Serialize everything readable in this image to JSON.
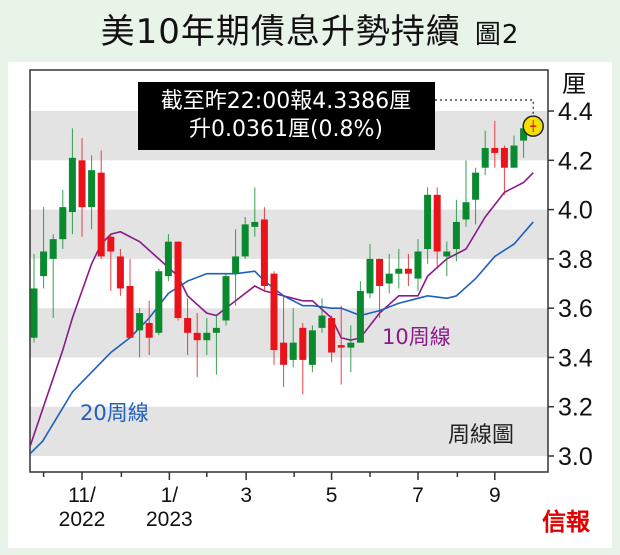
{
  "title": "美10年期債息升勢持續",
  "figure_label": "圖2",
  "source_logo": "信報",
  "chart_data": {
    "type": "candlestick",
    "title": "美10年期債息升勢持續",
    "ylabel": "厘",
    "ylim": [
      3.0,
      4.45
    ],
    "yticks": [
      "3.0",
      "3.2",
      "3.4",
      "3.6",
      "3.8",
      "4.0",
      "4.2",
      "4.4"
    ],
    "xticks": [
      {
        "index": 5.0,
        "label": [
          "11/",
          "2022"
        ]
      },
      {
        "index": 14.1,
        "label": [
          "1/",
          "2023"
        ]
      },
      {
        "index": 22.1,
        "label": [
          "3"
        ]
      },
      {
        "index": 31.0,
        "label": [
          "5"
        ]
      },
      {
        "index": 40.0,
        "label": [
          "7"
        ]
      },
      {
        "index": 48.0,
        "label": [
          "9"
        ]
      }
    ],
    "minor_ticks": [
      1.0,
      9.1,
      18.0,
      27.1,
      35.0,
      44.1
    ],
    "chart_label": "周線圖",
    "annotation": {
      "line1": "截至昨22:00報4.3386厘",
      "line2": "升0.0361厘(0.8%)",
      "value": 4.3386
    },
    "candles": [
      [
        3.48,
        3.82,
        3.46,
        3.68
      ],
      [
        3.73,
        4.01,
        3.68,
        3.83
      ],
      [
        3.8,
        3.9,
        3.56,
        3.88
      ],
      [
        3.88,
        4.08,
        3.84,
        4.01
      ],
      [
        3.99,
        4.33,
        3.9,
        4.21
      ],
      [
        4.2,
        4.29,
        3.89,
        4.01
      ],
      [
        4.01,
        4.22,
        3.92,
        4.16
      ],
      [
        4.15,
        4.24,
        3.8,
        3.81
      ],
      [
        3.89,
        3.9,
        3.67,
        3.83
      ],
      [
        3.81,
        3.84,
        3.65,
        3.68
      ],
      [
        3.69,
        3.8,
        3.48,
        3.48
      ],
      [
        3.51,
        3.6,
        3.4,
        3.58
      ],
      [
        3.54,
        3.63,
        3.41,
        3.48
      ],
      [
        3.5,
        3.76,
        3.49,
        3.75
      ],
      [
        3.73,
        3.9,
        3.71,
        3.87
      ],
      [
        3.87,
        3.87,
        3.55,
        3.56
      ],
      [
        3.56,
        3.64,
        3.41,
        3.5
      ],
      [
        3.5,
        3.58,
        3.32,
        3.47
      ],
      [
        3.47,
        3.56,
        3.41,
        3.5
      ],
      [
        3.5,
        3.57,
        3.33,
        3.52
      ],
      [
        3.55,
        3.74,
        3.53,
        3.73
      ],
      [
        3.74,
        3.92,
        3.61,
        3.81
      ],
      [
        3.81,
        3.97,
        3.8,
        3.94
      ],
      [
        3.93,
        4.09,
        3.89,
        3.95
      ],
      [
        3.96,
        4.01,
        3.67,
        3.69
      ],
      [
        3.74,
        3.75,
        3.37,
        3.43
      ],
      [
        3.46,
        3.65,
        3.28,
        3.37
      ],
      [
        3.39,
        3.6,
        3.36,
        3.46
      ],
      [
        3.52,
        3.54,
        3.25,
        3.39
      ],
      [
        3.37,
        3.53,
        3.34,
        3.51
      ],
      [
        3.52,
        3.64,
        3.5,
        3.57
      ],
      [
        3.56,
        3.57,
        3.38,
        3.42
      ],
      [
        3.45,
        3.61,
        3.29,
        3.44
      ],
      [
        3.44,
        3.53,
        3.34,
        3.46
      ],
      [
        3.46,
        3.71,
        3.46,
        3.67
      ],
      [
        3.66,
        3.86,
        3.64,
        3.8
      ],
      [
        3.8,
        3.8,
        3.56,
        3.69
      ],
      [
        3.7,
        3.82,
        3.66,
        3.74
      ],
      [
        3.74,
        3.84,
        3.68,
        3.76
      ],
      [
        3.76,
        3.82,
        3.69,
        3.74
      ],
      [
        3.72,
        3.88,
        3.67,
        3.83
      ],
      [
        3.84,
        4.09,
        3.78,
        4.06
      ],
      [
        4.06,
        4.09,
        3.76,
        3.83
      ],
      [
        3.81,
        3.87,
        3.73,
        3.83
      ],
      [
        3.84,
        4.04,
        3.79,
        3.95
      ],
      [
        3.96,
        4.2,
        3.93,
        4.03
      ],
      [
        4.04,
        4.17,
        3.94,
        4.15
      ],
      [
        4.17,
        4.32,
        4.14,
        4.25
      ],
      [
        4.25,
        4.36,
        4.17,
        4.23
      ],
      [
        4.25,
        4.26,
        4.06,
        4.17
      ],
      [
        4.17,
        4.3,
        4.17,
        4.26
      ],
      [
        4.28,
        4.35,
        4.21,
        4.33
      ],
      [
        4.345,
        4.36,
        4.31,
        4.3386
      ]
    ],
    "series": [
      {
        "name": "10周線",
        "color": "#8b1a8b",
        "points": [
          [
            -0.4,
            3.04
          ],
          [
            0.9,
            3.19
          ],
          [
            3,
            3.43
          ],
          [
            4,
            3.56
          ],
          [
            6,
            3.78
          ],
          [
            7,
            3.86
          ],
          [
            8,
            3.9
          ],
          [
            9,
            3.91
          ],
          [
            11,
            3.87
          ],
          [
            13,
            3.8
          ],
          [
            15,
            3.73
          ],
          [
            16,
            3.65
          ],
          [
            18,
            3.58
          ],
          [
            19,
            3.57
          ],
          [
            21,
            3.63
          ],
          [
            23,
            3.69
          ],
          [
            24,
            3.67
          ],
          [
            26,
            3.65
          ],
          [
            28,
            3.63
          ],
          [
            29,
            3.63
          ],
          [
            31,
            3.56
          ],
          [
            32,
            3.48
          ],
          [
            33,
            3.47
          ],
          [
            34,
            3.48
          ],
          [
            36,
            3.58
          ],
          [
            38,
            3.65
          ],
          [
            40,
            3.65
          ],
          [
            41,
            3.73
          ],
          [
            43,
            3.8
          ],
          [
            45,
            3.84
          ],
          [
            47,
            3.97
          ],
          [
            49,
            4.07
          ],
          [
            51,
            4.11
          ],
          [
            52,
            4.15
          ]
        ]
      },
      {
        "name": "20周線",
        "color": "#1f5fbf",
        "points": [
          [
            -0.4,
            3.01
          ],
          [
            0.9,
            3.06
          ],
          [
            4,
            3.26
          ],
          [
            6,
            3.34
          ],
          [
            8,
            3.42
          ],
          [
            10,
            3.48
          ],
          [
            12,
            3.56
          ],
          [
            14,
            3.66
          ],
          [
            16,
            3.71
          ],
          [
            18,
            3.74
          ],
          [
            21,
            3.74
          ],
          [
            23,
            3.75
          ],
          [
            24,
            3.71
          ],
          [
            26,
            3.65
          ],
          [
            28,
            3.61
          ],
          [
            29,
            3.61
          ],
          [
            31,
            3.6
          ],
          [
            32,
            3.6
          ],
          [
            34,
            3.57
          ],
          [
            36,
            3.59
          ],
          [
            38,
            3.62
          ],
          [
            40,
            3.64
          ],
          [
            41,
            3.65
          ],
          [
            43,
            3.64
          ],
          [
            44,
            3.65
          ],
          [
            46,
            3.72
          ],
          [
            48,
            3.81
          ],
          [
            50,
            3.86
          ],
          [
            52,
            3.95
          ]
        ]
      }
    ],
    "colors": {
      "up": "#0a8a2e",
      "down": "#e8131b",
      "band": "#e3e3e3",
      "highlight": "#f2e000"
    }
  }
}
